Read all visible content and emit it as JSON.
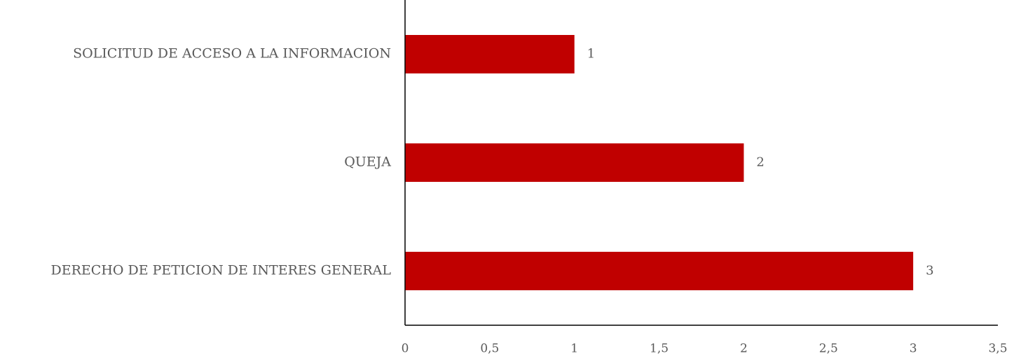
{
  "chart_data": {
    "type": "bar",
    "orientation": "horizontal",
    "categories": [
      "SOLICITUD DE ACCESO A LA INFORMACION",
      "QUEJA",
      "DERECHO DE PETICION DE INTERES GENERAL"
    ],
    "values": [
      1,
      2,
      3
    ],
    "value_labels": [
      "1",
      "2",
      "3"
    ],
    "xlim": [
      0,
      3.5
    ],
    "x_ticks": [
      "0",
      "0,5",
      "1",
      "1,5",
      "2",
      "2,5",
      "3",
      "3,5"
    ],
    "title": "",
    "xlabel": "",
    "ylabel": "",
    "grid": false,
    "bar_color": "#C00000"
  }
}
